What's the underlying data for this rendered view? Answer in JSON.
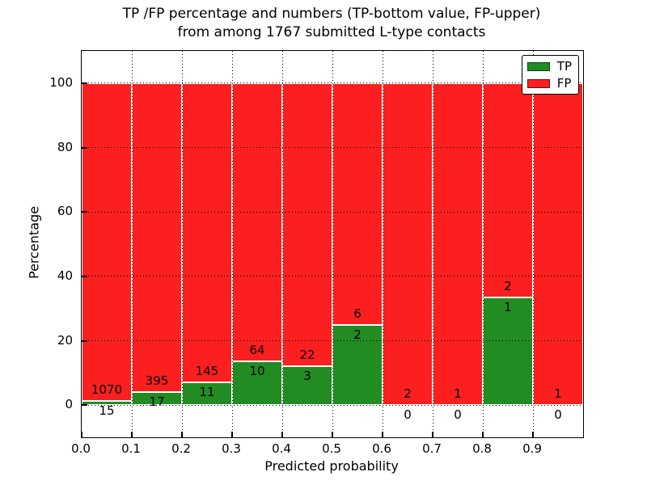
{
  "figure": {
    "title_line1": "TP /FP percentage and numbers (TP-bottom value, FP-upper)",
    "title_line2": "from among 1767 submitted L-type contacts"
  },
  "chart_data": {
    "type": "bar",
    "subtype": "stacked-percentage",
    "title": "TP /FP percentage and numbers (TP-bottom value, FP-upper)\nfrom among 1767 submitted L-type contacts",
    "xlabel": "Predicted probability",
    "ylabel": "Percentage",
    "xlim": [
      0.0,
      1.0
    ],
    "ylim": [
      -10,
      110
    ],
    "x_tick_labels": [
      "0.0",
      "0.1",
      "0.2",
      "0.3",
      "0.4",
      "0.5",
      "0.6",
      "0.7",
      "0.8",
      "0.9"
    ],
    "y_tick_values": [
      0,
      20,
      40,
      60,
      80,
      100
    ],
    "grid": "dotted black, horizontal at y ticks and vertical at 0.1 steps, drawn above bars",
    "total_contacts": 1767,
    "legend_position": "upper right",
    "series": [
      {
        "name": "TP",
        "color": "#228b22"
      },
      {
        "name": "FP",
        "color": "#fb1f1f"
      }
    ],
    "bar_edge_color": "#ffffff",
    "annotation_note": "TP-bottom value, FP-upper",
    "bins": [
      {
        "x_range": [
          0.0,
          0.1
        ],
        "tp": 15,
        "fp": 1070,
        "tp_pct": 1.38,
        "fp_pct": 98.62
      },
      {
        "x_range": [
          0.1,
          0.2
        ],
        "tp": 17,
        "fp": 395,
        "tp_pct": 4.13,
        "fp_pct": 95.87
      },
      {
        "x_range": [
          0.2,
          0.3
        ],
        "tp": 11,
        "fp": 145,
        "tp_pct": 7.05,
        "fp_pct": 92.95
      },
      {
        "x_range": [
          0.3,
          0.4
        ],
        "tp": 10,
        "fp": 64,
        "tp_pct": 13.51,
        "fp_pct": 86.49
      },
      {
        "x_range": [
          0.4,
          0.5
        ],
        "tp": 3,
        "fp": 22,
        "tp_pct": 12.0,
        "fp_pct": 88.0
      },
      {
        "x_range": [
          0.5,
          0.6
        ],
        "tp": 2,
        "fp": 6,
        "tp_pct": 25.0,
        "fp_pct": 75.0
      },
      {
        "x_range": [
          0.6,
          0.7
        ],
        "tp": 0,
        "fp": 2,
        "tp_pct": 0.0,
        "fp_pct": 100.0
      },
      {
        "x_range": [
          0.7,
          0.8
        ],
        "tp": 0,
        "fp": 1,
        "tp_pct": 0.0,
        "fp_pct": 100.0
      },
      {
        "x_range": [
          0.8,
          0.9
        ],
        "tp": 1,
        "fp": 2,
        "tp_pct": 33.33,
        "fp_pct": 66.67
      },
      {
        "x_range": [
          0.9,
          1.0
        ],
        "tp": 0,
        "fp": 1,
        "tp_pct": 0.0,
        "fp_pct": 100.0
      }
    ]
  }
}
